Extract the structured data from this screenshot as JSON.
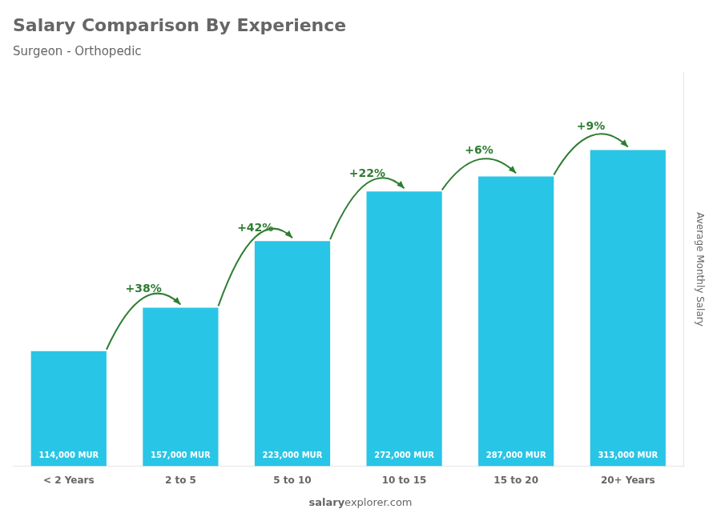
{
  "chart_data": {
    "type": "bar",
    "title": "Salary Comparison By Experience",
    "subtitle": "Surgeon - Orthopedic",
    "ylabel": "Average Monthly Salary",
    "categories": [
      "< 2 Years",
      "2 to 5",
      "5 to 10",
      "10 to 15",
      "15 to 20",
      "20+ Years"
    ],
    "values": [
      114000,
      157000,
      223000,
      272000,
      287000,
      313000
    ],
    "value_labels": [
      "114,000 MUR",
      "157,000 MUR",
      "223,000 MUR",
      "272,000 MUR",
      "287,000 MUR",
      "313,000 MUR"
    ],
    "data_labels": true,
    "annotations": [
      null,
      "+38%",
      "+42%",
      "+22%",
      "+6%",
      "+9%"
    ],
    "color": "#29c5e6",
    "ylim": [
      0,
      390000
    ],
    "tick_labels": "x",
    "grid": false,
    "watermark": [
      "salary",
      "explorer.com"
    ]
  }
}
